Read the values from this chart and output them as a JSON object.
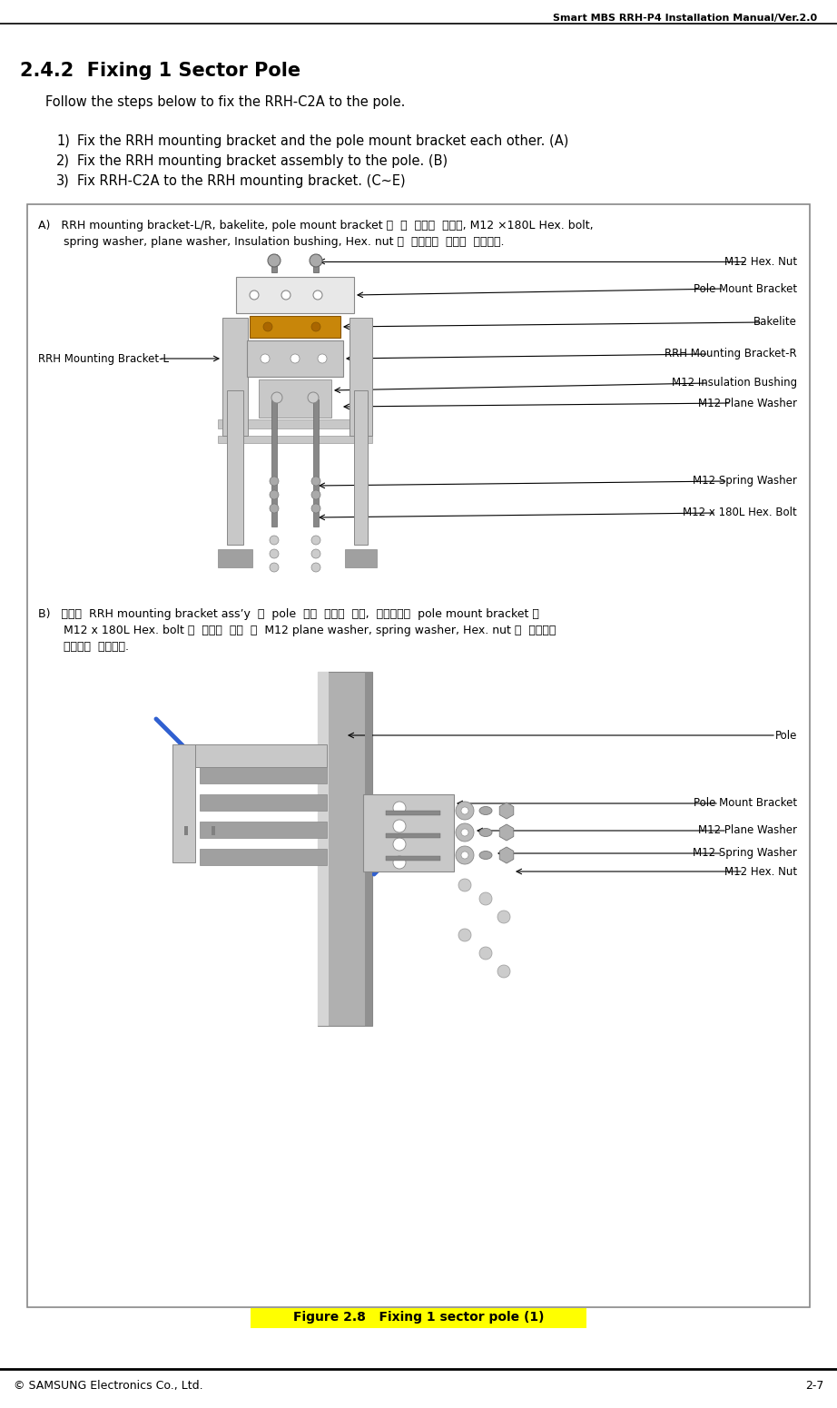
{
  "header_text": "Smart MBS RRH-P4 Installation Manual/Ver.2.0",
  "section_title": "2.4.2  Fixing 1 Sector Pole",
  "intro_text": "Follow the steps below to fix the RRH-C2A to the pole.",
  "steps": [
    "Fix the RRH mounting bracket and the pole mount bracket each other. (A)",
    "Fix the RRH mounting bracket assembly to the pole. (B)",
    "Fix RRH-C2A to the RRH mounting bracket. (C~E)"
  ],
  "figure_caption": "Figure 2.8   Fixing 1 sector pole (1)",
  "footer_left": "© SAMSUNG Electronics Co., Ltd.",
  "footer_right": "2-7",
  "box_A_text_line1": "A)   RRH mounting bracket-L/R, bakelite, pole mount bracket 의  홈  위치를  맞추고, M12 ×180L Hex. bolt,",
  "box_A_text_line2": "       spring washer, plane washer, Insulation bushing, Hex. nut 를  사용하여  견고히  고정한다.",
  "box_B_text_line1": "B)   조립된  RRH mounting bracket ass’y  를  pole  고정  위치에  놀고,  반대쪽에서  pole mount bracket 을",
  "box_B_text_line2": "       M12 x 180L Hex. bolt 에  맞추어  끼운  후  M12 plane washer, spring washer, Hex. nut 를  이용하여",
  "box_B_text_line3": "       견고하게  고정한다.",
  "labels_A_right": [
    "M12 Hex. Nut",
    "Pole Mount Bracket",
    "Bakelite",
    "RRH Mounting Bracket-R",
    "M12 Insulation Bushing",
    "M12 Plane Washer",
    "M12 Spring Washer",
    "M12 x 180L Hex. Bolt"
  ],
  "label_left_A": "RRH Mounting Bracket-L",
  "labels_B_right": [
    "Pole",
    "Pole Mount Bracket",
    "M12 Plane Washer",
    "M12 Spring Washer",
    "M12 Hex. Nut"
  ],
  "bg_color": "#ffffff",
  "box_border_color": "#888888",
  "title_color": "#000000",
  "text_color": "#000000",
  "caption_bg": "#ffff00",
  "caption_color": "#000000",
  "silver": "#c8c8c8",
  "silver_dark": "#a0a0a0",
  "bakelite_color": "#c8860a",
  "pole_color": "#b8b8b8",
  "pole_dark": "#909090",
  "blue_arrow": "#3060d0"
}
